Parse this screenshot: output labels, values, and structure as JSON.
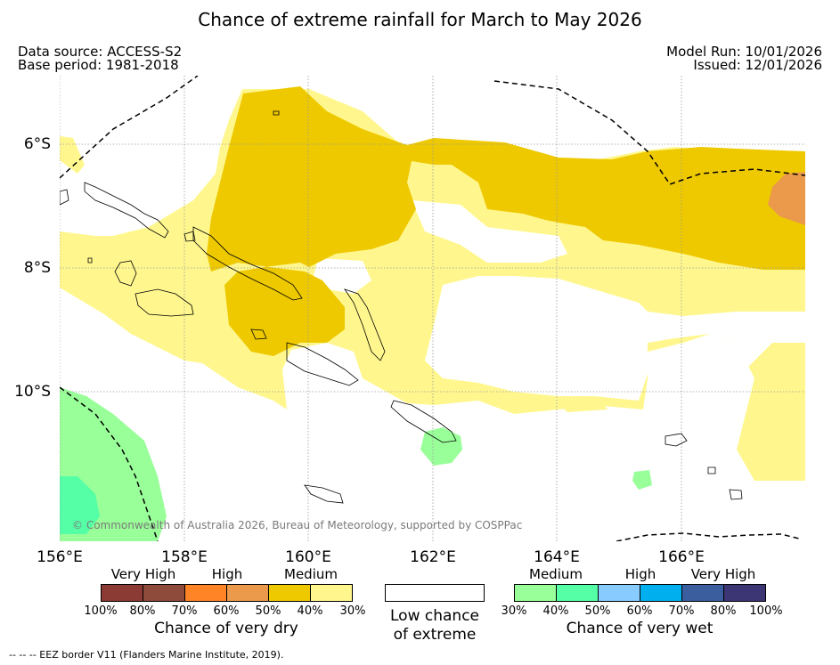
{
  "title": "Chance of extreme rainfall for March to May 2026",
  "data_source": "Data source: ACCESS-S2",
  "base_period": "Base period: 1981-2018",
  "model_run": "Model Run: 10/01/2026",
  "issued": "Issued: 12/01/2026",
  "credit": "© Commonwealth of Australia 2026, Bureau of Meteorology, supported by COSPPac",
  "eez_note": "-- -- -- EEZ border V11 (Flanders Marine Institute, 2019).",
  "axes": {
    "lon_labels": [
      "156°E",
      "158°E",
      "160°E",
      "162°E",
      "164°E",
      "166°E"
    ],
    "lat_labels": [
      "6°S",
      "8°S",
      "10°S"
    ]
  },
  "legend": {
    "dry": {
      "title": "Chance of very dry",
      "categories": [
        "Very High",
        "High",
        "Medium"
      ],
      "ticks": [
        "100%",
        "80%",
        "70%",
        "60%",
        "50%",
        "40%",
        "30%"
      ],
      "colors": [
        "#8b3a34",
        "#8e4a3a",
        "#ff8426",
        "#ea9a4a",
        "#eec900",
        "#fff78e"
      ]
    },
    "low": {
      "label_line1": "Low chance",
      "label_line2": "of extreme",
      "color": "#ffffff"
    },
    "wet": {
      "title": "Chance of very wet",
      "categories": [
        "Medium",
        "High",
        "Very High"
      ],
      "ticks": [
        "30%",
        "40%",
        "50%",
        "60%",
        "70%",
        "80%",
        "100%"
      ],
      "colors": [
        "#99ff99",
        "#55ffa6",
        "#88ccff",
        "#00b0ee",
        "#3a5e9e",
        "#3d3675"
      ]
    }
  }
}
